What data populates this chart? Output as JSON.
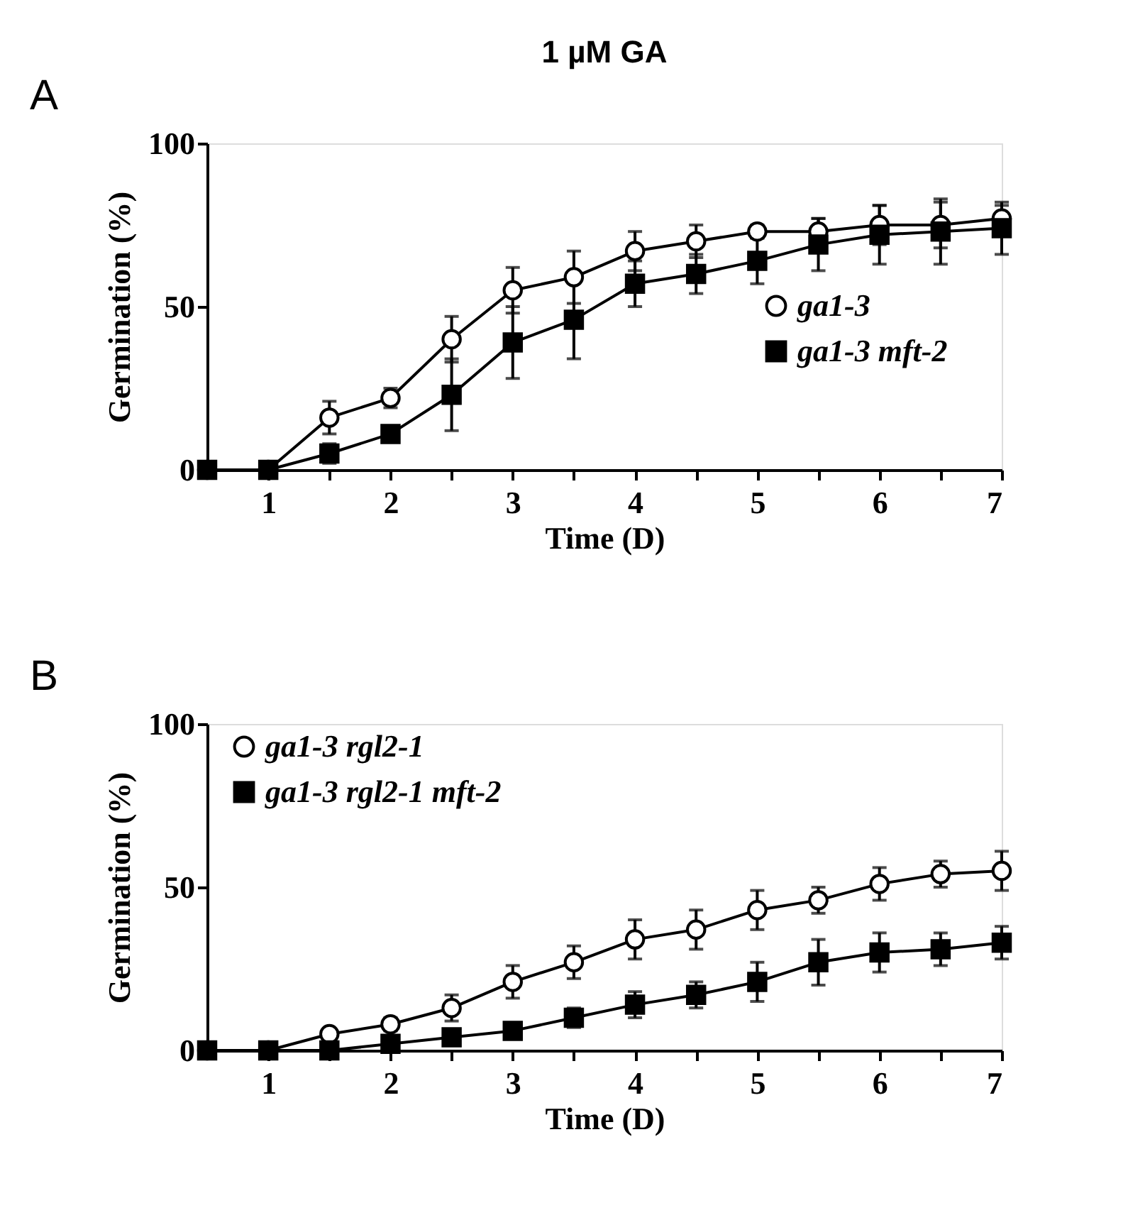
{
  "chart_data": [
    {
      "type": "line",
      "title": "1 µM GA",
      "xlabel": "Time (D)",
      "ylabel": "Germination (%)",
      "annotations": [
        "A"
      ],
      "x": [
        0.5,
        1,
        1.5,
        2,
        2.5,
        3,
        3.5,
        4,
        4.5,
        5,
        5.5,
        6,
        6.5,
        7
      ],
      "xlim": [
        0.5,
        7
      ],
      "xticks": [
        1,
        {
          "value": 1.5,
          "label": null
        },
        2,
        {
          "value": 2.5,
          "label": null
        },
        3,
        {
          "value": 3.5,
          "label": null
        },
        4,
        {
          "value": 4.5,
          "label": null
        },
        5,
        {
          "value": 5.5,
          "label": null
        },
        6,
        {
          "value": 6.5,
          "label": null
        },
        7
      ],
      "ylim": [
        0,
        100
      ],
      "yticks": [
        0,
        50,
        100
      ],
      "grid": false,
      "legend": "right",
      "series": [
        {
          "name": "ga1-3",
          "color": "#000000",
          "marker": "circle",
          "values": [
            0,
            0,
            16,
            22,
            40,
            55,
            59,
            67,
            70,
            73,
            73,
            75,
            75,
            77
          ],
          "errors": [
            null,
            null,
            5,
            3,
            7,
            7,
            8,
            6,
            5,
            2,
            4,
            6,
            7,
            4
          ]
        },
        {
          "name": "ga1-3 mft-2",
          "color": "#000000",
          "marker": "square",
          "values": [
            0,
            0,
            5,
            11,
            23,
            39,
            46,
            57,
            60,
            64,
            69,
            72,
            73,
            74
          ],
          "errors": [
            null,
            null,
            3,
            1,
            11,
            11,
            12,
            7,
            6,
            7,
            8,
            9,
            10,
            8
          ]
        }
      ]
    },
    {
      "type": "line",
      "xlabel": "Time (D)",
      "ylabel": "Germination (%)",
      "annotations": [
        "B"
      ],
      "x": [
        0.5,
        1,
        1.5,
        2,
        2.5,
        3,
        3.5,
        4,
        4.5,
        5,
        5.5,
        6,
        6.5,
        7
      ],
      "xlim": [
        0.5,
        7
      ],
      "xticks": [
        1,
        {
          "value": 1.5,
          "label": null
        },
        2,
        {
          "value": 2.5,
          "label": null
        },
        3,
        {
          "value": 3.5,
          "label": null
        },
        4,
        {
          "value": 4.5,
          "label": null
        },
        5,
        {
          "value": 5.5,
          "label": null
        },
        6,
        {
          "value": 6.5,
          "label": null
        },
        7
      ],
      "ylim": [
        0,
        100
      ],
      "yticks": [
        0,
        50,
        100
      ],
      "grid": false,
      "legend": "top left",
      "series": [
        {
          "name": "ga1-3 rgl2-1",
          "color": "#000000",
          "marker": "circle",
          "values": [
            0,
            0,
            5,
            8,
            13,
            21,
            27,
            34,
            37,
            43,
            46,
            51,
            54,
            55
          ],
          "errors": [
            null,
            null,
            null,
            2,
            4,
            5,
            5,
            6,
            6,
            6,
            4,
            5,
            4,
            6
          ]
        },
        {
          "name": "ga1-3 rgl2-1 mft-2",
          "color": "#000000",
          "marker": "square",
          "values": [
            0,
            0,
            0,
            2,
            4,
            6,
            10,
            14,
            17,
            21,
            27,
            30,
            31,
            33
          ],
          "errors": [
            null,
            null,
            null,
            1,
            1,
            2,
            3,
            4,
            4,
            6,
            7,
            6,
            5,
            5
          ]
        }
      ]
    }
  ]
}
